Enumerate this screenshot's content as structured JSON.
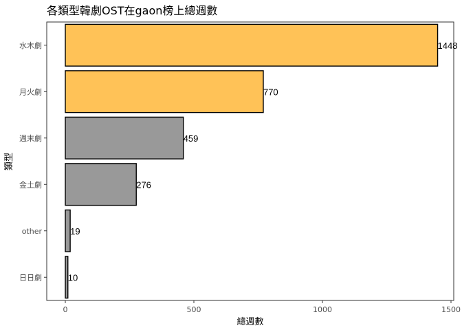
{
  "chart_data": {
    "type": "bar",
    "orientation": "horizontal",
    "title": "各類型韓劇OST在gaon榜上總週數",
    "xlabel": "總週數",
    "ylabel": "類型",
    "categories": [
      "水木劇",
      "月火劇",
      "週末劇",
      "金土劇",
      "other",
      "日日劇"
    ],
    "values": [
      1448,
      770,
      459,
      276,
      19,
      10
    ],
    "highlighted": [
      true,
      true,
      false,
      false,
      false,
      false
    ],
    "colors": {
      "highlight": "#ffc257",
      "default": "#999999",
      "outline": "#000000"
    },
    "xlim": [
      0,
      1500
    ],
    "xticks": [
      0,
      500,
      1000,
      1500
    ],
    "xtick_labels": [
      "0",
      "500",
      "1000",
      "1500"
    ],
    "grid": false,
    "legend": "none"
  }
}
